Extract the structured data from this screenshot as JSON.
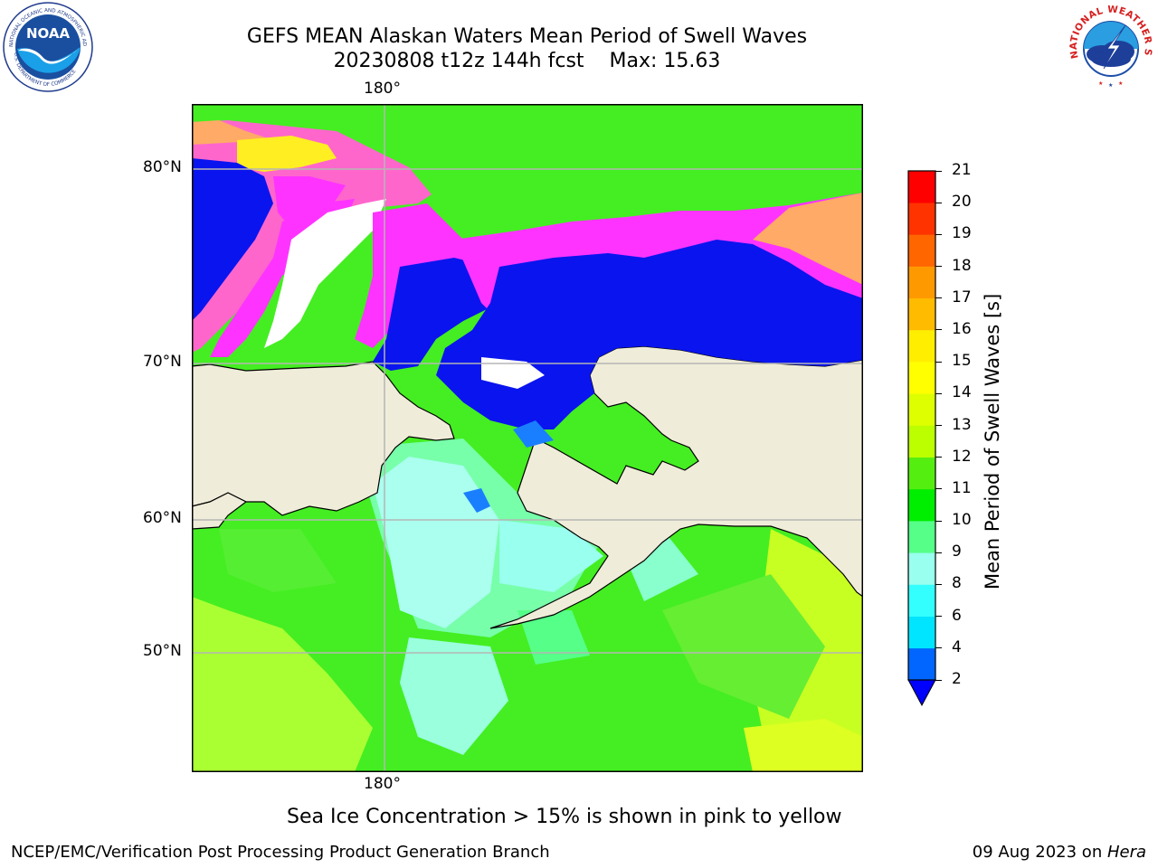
{
  "header": {
    "title_line1": "GEFS MEAN Alaskan Waters Mean Period of Swell Waves",
    "title_date": "20230808 t12z 144h fcst",
    "title_max": "Max: 15.63"
  },
  "logos": {
    "noaa_text": "NOAA",
    "noaa_ring_top": "NATIONAL OCEANIC AND ATMOSPHERIC ADMINISTRATION",
    "noaa_ring_bottom": "U.S. DEPARTMENT OF COMMERCE",
    "nws_ring": "NATIONAL WEATHER SERVICE"
  },
  "map": {
    "lon_label_top": "180°",
    "lon_label_bottom": "180°",
    "lat_labels": [
      {
        "label": "80°N",
        "lat": 80
      },
      {
        "label": "70°N",
        "lat": 70
      },
      {
        "label": "60°N",
        "lat": 60
      },
      {
        "label": "50°N",
        "lat": 50
      }
    ],
    "colors": {
      "ice_blue": "#0a14ee",
      "ice_magenta": "#ff33ff",
      "ice_pink": "#ff66cc",
      "ice_orange": "#ffaa66",
      "ice_yellow": "#ffee22",
      "land": "#efedd9",
      "ocean_green": "#33ee22",
      "ocean_lightgreen": "#66ff88",
      "ocean_cyan": "#99ffee",
      "ocean_yellowgreen": "#bbff33"
    }
  },
  "colorbar": {
    "label": "Mean Period of Swell Waves [s]",
    "ticks": [
      "2",
      "4",
      "6",
      "8",
      "9",
      "10",
      "11",
      "12",
      "13",
      "14",
      "15",
      "16",
      "17",
      "18",
      "19",
      "20",
      "21"
    ],
    "colors": [
      "#0066ff",
      "#00e5ff",
      "#33ffff",
      "#99ffee",
      "#55ff88",
      "#00ee00",
      "#55ee11",
      "#bbff00",
      "#ddff00",
      "#ffff00",
      "#ffee00",
      "#ffbb00",
      "#ff9900",
      "#ff6600",
      "#ff3300",
      "#ff0000"
    ],
    "extend_color": "#0000ff"
  },
  "note": "Sea Ice Concentration > 15% is shown in pink to yellow",
  "footer": {
    "left": "NCEP/EMC/Verification Post Processing Product Generation Branch",
    "right_date": "09 Aug 2023 on ",
    "right_machine": "Hera"
  }
}
